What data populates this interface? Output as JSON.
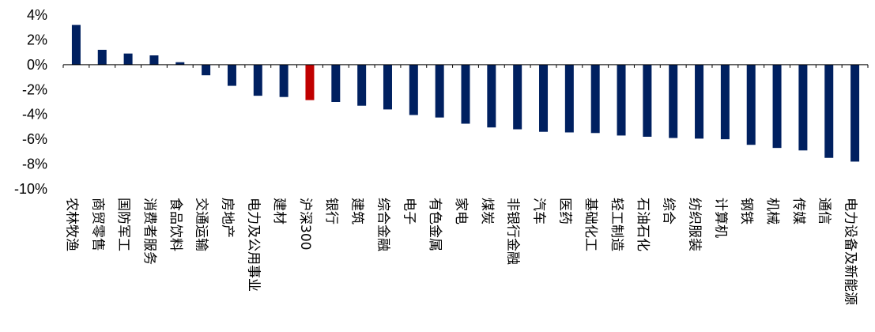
{
  "chart_data": {
    "type": "bar",
    "title": "",
    "xlabel": "",
    "ylabel": "",
    "ylim": [
      -10,
      4
    ],
    "ytick_step": 2,
    "ytick_format": "percent",
    "grid": false,
    "legend": "none",
    "colors": {
      "default": "#002060",
      "highlight": "#C00000",
      "axis": "#000000"
    },
    "highlight_categories": [
      "沪深300"
    ],
    "categories": [
      "农林牧渔",
      "商贸零售",
      "国防军工",
      "消费者服务",
      "食品饮料",
      "交通运输",
      "房地产",
      "电力及公用事业",
      "建材",
      "沪深300",
      "银行",
      "建筑",
      "综合金融",
      "电子",
      "有色金属",
      "家电",
      "煤炭",
      "非银行金融",
      "汽车",
      "医药",
      "基础化工",
      "轻工制造",
      "石油石化",
      "综合",
      "纺织服装",
      "计算机",
      "钢铁",
      "机械",
      "传媒",
      "通信",
      "电力设备及新能源"
    ],
    "values": [
      3.2,
      1.2,
      0.9,
      0.75,
      0.2,
      -0.85,
      -1.7,
      -2.5,
      -2.6,
      -2.85,
      -3.0,
      -3.3,
      -3.6,
      -4.05,
      -4.25,
      -4.75,
      -5.05,
      -5.2,
      -5.4,
      -5.45,
      -5.5,
      -5.7,
      -5.8,
      -5.9,
      -5.95,
      -6.0,
      -6.45,
      -6.7,
      -6.9,
      -7.5,
      -7.8
    ]
  }
}
